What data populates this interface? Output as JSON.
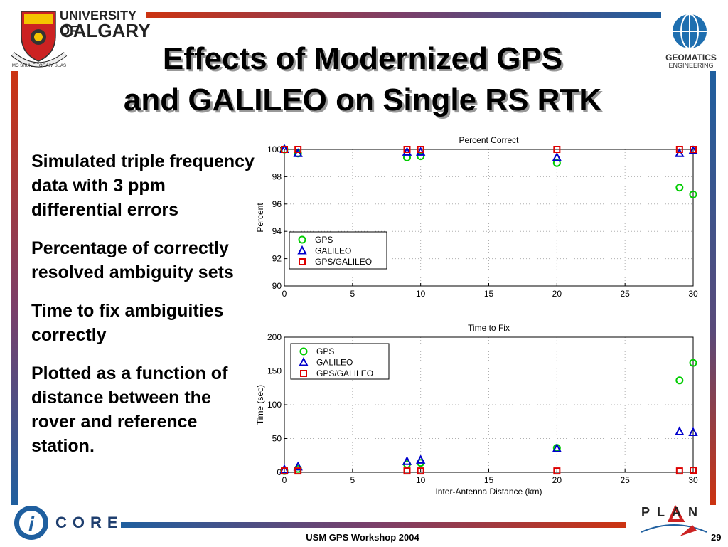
{
  "header": {
    "university_line1": "UNIVERSITY OF",
    "university_line2": "CALGARY",
    "crest_motto": "MO SHUILE TOGAIM SUAS",
    "dept_line1": "GEOMATICS",
    "dept_line2": "ENGINEERING"
  },
  "slide": {
    "title_line1": "Effects of Modernized GPS",
    "title_line2": "and GALILEO on Single RS RTK",
    "bullets": [
      "Simulated triple frequency data with 3 ppm differential errors",
      "Percentage of correctly resolved ambiguity sets",
      "Time to fix ambiguities correctly",
      "Plotted as a function of distance between the rover and reference station."
    ]
  },
  "footer": {
    "left_logo_text": "CORE",
    "right_logo_text": "PLAN",
    "workshop": "USM GPS Workshop 2004",
    "page": "29"
  },
  "colors": {
    "gps": "#00cc00",
    "galileo": "#0000cc",
    "gps_galileo": "#dd0000",
    "bar_red": "#cc3311",
    "bar_blue": "#1f5f9f"
  },
  "chart_data": [
    {
      "type": "scatter",
      "title": "Percent Correct",
      "xlabel": "",
      "ylabel": "Percent",
      "xlim": [
        0,
        30
      ],
      "ylim": [
        90,
        100
      ],
      "xticks": [
        0,
        5,
        10,
        15,
        20,
        25,
        30
      ],
      "yticks": [
        90,
        92,
        94,
        96,
        98,
        100
      ],
      "grid": true,
      "legend_position": "bottom-left",
      "series": [
        {
          "name": "GPS",
          "marker": "circle",
          "x": [
            0,
            1,
            9,
            10,
            20,
            29,
            30
          ],
          "y": [
            100,
            99.7,
            99.4,
            99.5,
            99.0,
            97.2,
            96.7
          ]
        },
        {
          "name": "GALILEO",
          "marker": "triangle",
          "x": [
            0,
            1,
            9,
            10,
            20,
            29,
            30
          ],
          "y": [
            100,
            99.7,
            99.8,
            99.8,
            99.4,
            99.7,
            99.9
          ]
        },
        {
          "name": "GPS/GALILEO",
          "marker": "square",
          "x": [
            0,
            1,
            9,
            10,
            20,
            29,
            30
          ],
          "y": [
            100,
            100,
            100,
            100,
            100,
            100,
            100
          ]
        }
      ]
    },
    {
      "type": "scatter",
      "title": "Time to Fix",
      "xlabel": "Inter-Antenna Distance (km)",
      "ylabel": "Time (sec)",
      "xlim": [
        0,
        30
      ],
      "ylim": [
        0,
        200
      ],
      "xticks": [
        0,
        5,
        10,
        15,
        20,
        25,
        30
      ],
      "yticks": [
        0,
        50,
        100,
        150,
        200
      ],
      "grid": true,
      "legend_position": "top-left",
      "series": [
        {
          "name": "GPS",
          "marker": "circle",
          "x": [
            0,
            1,
            9,
            10,
            20,
            29,
            30
          ],
          "y": [
            2,
            5,
            12,
            14,
            36,
            136,
            162
          ]
        },
        {
          "name": "GALILEO",
          "marker": "triangle",
          "x": [
            0,
            1,
            9,
            10,
            20,
            29,
            30
          ],
          "y": [
            4,
            8,
            16,
            18,
            35,
            60,
            59
          ]
        },
        {
          "name": "GPS/GALILEO",
          "marker": "square",
          "x": [
            0,
            1,
            9,
            10,
            20,
            29,
            30
          ],
          "y": [
            2,
            2,
            2,
            2,
            2,
            2,
            3
          ]
        }
      ]
    }
  ]
}
